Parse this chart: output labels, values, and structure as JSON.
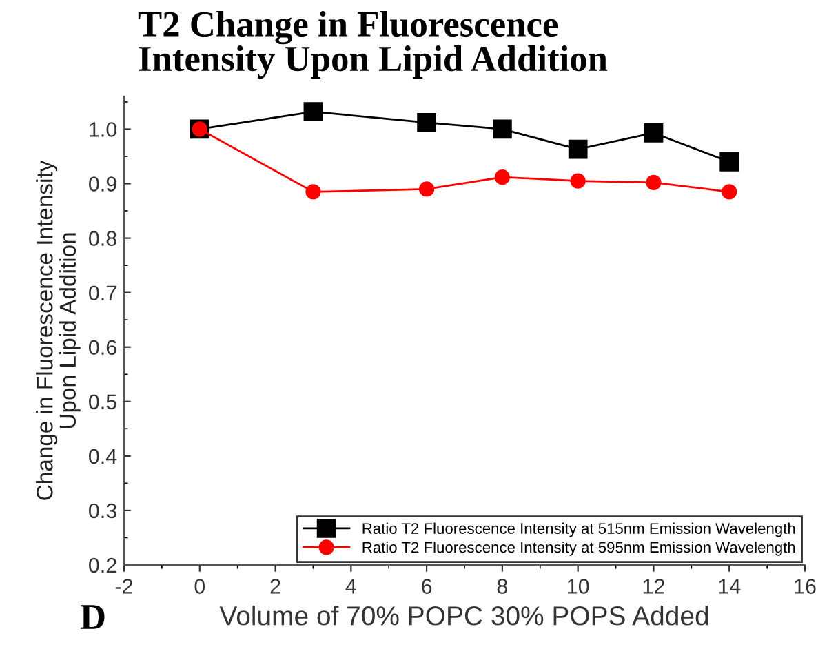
{
  "chart_data": {
    "type": "line",
    "title": "T2 Change in Fluorescence\nIntensity Upon Lipid Addition",
    "xlabel": "Volume of 70% POPC 30% POPS Added",
    "ylabel": "Change in Fluorescence Intensity\nUpon Lipid Addition",
    "annotations": [
      "D"
    ],
    "x": [
      0,
      3,
      6,
      8,
      10,
      12,
      14
    ],
    "series": [
      {
        "name": "Ratio T2 Fluorescence Intensity at 515nm Emission Wavelength",
        "color": "#000000",
        "marker": "square",
        "values": [
          1.0,
          1.032,
          1.012,
          1.0,
          0.963,
          0.993,
          0.94
        ]
      },
      {
        "name": "Ratio T2 Fluorescence Intensity at 595nm Emission Wavelength",
        "color": "#ff0000",
        "marker": "circle",
        "values": [
          1.0,
          0.885,
          0.89,
          0.912,
          0.905,
          0.902,
          0.885
        ]
      }
    ],
    "xlim": [
      -2,
      16
    ],
    "xticks": [
      -2,
      0,
      2,
      4,
      6,
      8,
      10,
      12,
      14,
      16
    ],
    "ylim": [
      0.2,
      1.06
    ],
    "yticks": [
      0.2,
      0.3,
      0.4,
      0.5,
      0.6,
      0.7,
      0.8,
      0.9,
      {
        "value": 1,
        "label": "1.0"
      }
    ],
    "grid": false,
    "legend": "bottom right"
  }
}
